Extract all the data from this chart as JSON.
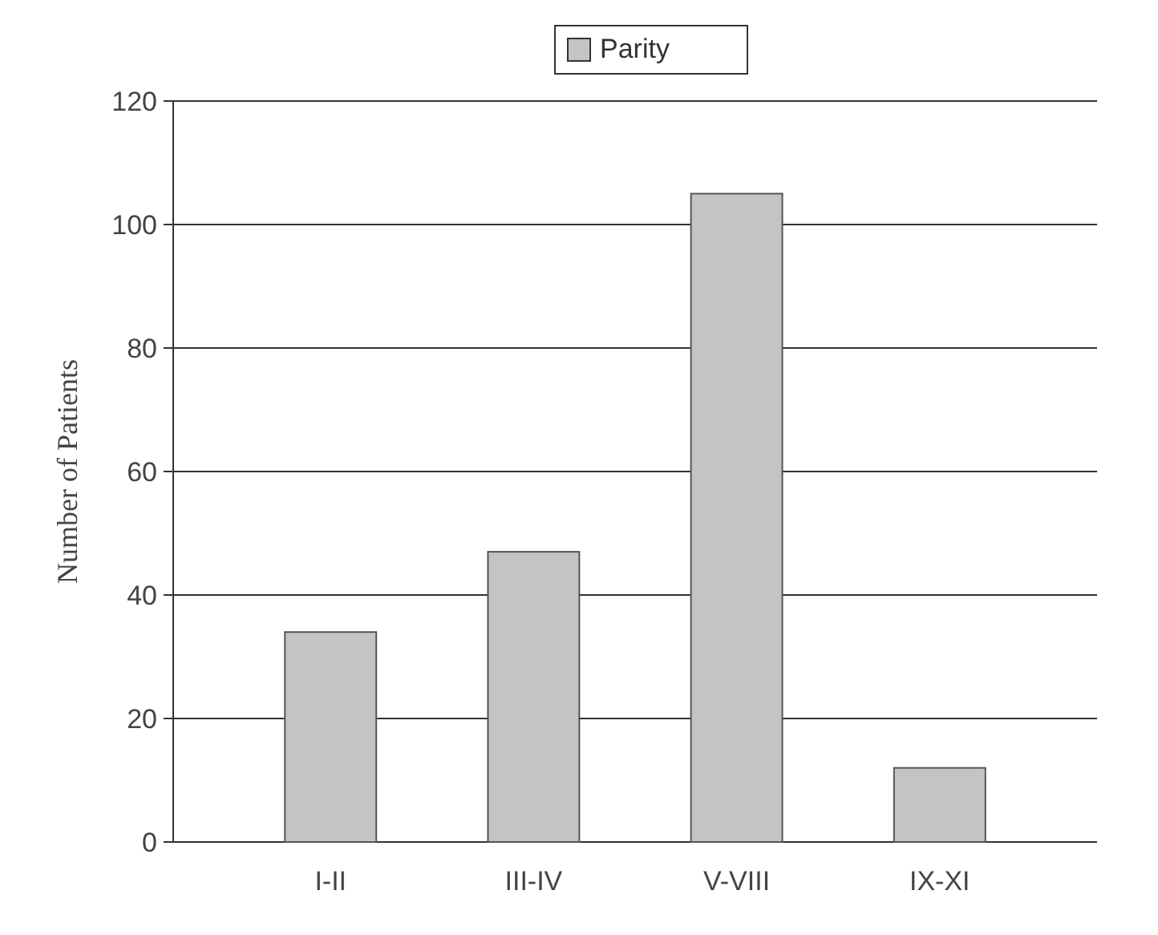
{
  "chart_data": {
    "type": "bar",
    "ylabel": "Number of Patients",
    "categories": [
      "I-II",
      "III-IV",
      "V-VIII",
      "IX-XI"
    ],
    "series": [
      {
        "name": "Parity",
        "color": "#c4c4c4",
        "values": [
          34,
          47,
          105,
          12
        ]
      }
    ],
    "ylim": [
      0,
      120
    ],
    "yticks": [
      0,
      20,
      40,
      60,
      80,
      100,
      120
    ],
    "grid": "y",
    "legend": "top"
  }
}
